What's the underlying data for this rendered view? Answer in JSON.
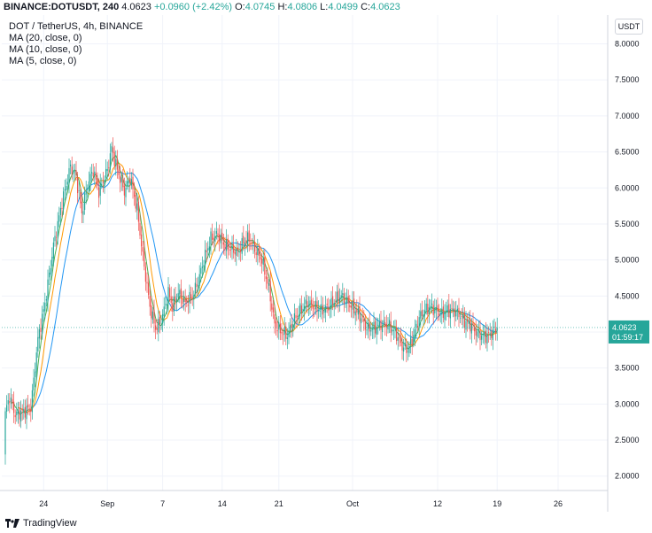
{
  "header": {
    "symbol": "BINANCE:DOTUSDT, 240",
    "last": "4.0623",
    "change": "+0.0960 (+2.42%)",
    "open_label": "O:",
    "open": "4.0745",
    "high_label": "H:",
    "high": "4.0806",
    "low_label": "L:",
    "low": "4.0499",
    "close_label": "C:",
    "close": "4.0623"
  },
  "indicators": [
    {
      "label": "DOT / TetherUS, 4h, BINANCE"
    },
    {
      "label": "MA (20, close, 0)"
    },
    {
      "label": "MA (10, close, 0)"
    },
    {
      "label": "MA (5, close, 0)"
    }
  ],
  "unit_badge": "USDT",
  "countdown": "01:59:17",
  "brand": "TradingView",
  "colors": {
    "up": "#26a69a",
    "down": "#ef5350",
    "ma20": "#2196f3",
    "ma10": "#ff9800",
    "ma5": "#4caf50",
    "grid": "#f0f3fa",
    "price_label_bg": "#26a69a"
  },
  "chart_data": {
    "type": "candlestick",
    "y_range": [
      1.8,
      8.4
    ],
    "y_ticks": [
      "2.0000",
      "2.5000",
      "3.0000",
      "3.5000",
      "4.0000",
      "4.5000",
      "5.0000",
      "5.5000",
      "6.0000",
      "6.5000",
      "7.0000",
      "7.5000",
      "8.0000"
    ],
    "x_ticks": [
      "24",
      "Sep",
      "7",
      "14",
      "21",
      "Oct",
      "12",
      "19",
      "26"
    ],
    "x_tick_index": [
      27,
      72,
      111,
      153,
      193,
      245,
      305,
      347,
      390
    ],
    "last_price": "4.0623",
    "series": [
      {
        "name": "MA (20, close, 0)",
        "period": 20
      },
      {
        "name": "MA (10, close, 0)",
        "period": 10
      },
      {
        "name": "MA (5, close, 0)",
        "period": 5
      }
    ],
    "close_anchors": [
      [
        0,
        2.9
      ],
      [
        3,
        3.1
      ],
      [
        7,
        2.85
      ],
      [
        13,
        2.9
      ],
      [
        18,
        2.95
      ],
      [
        23,
        3.9
      ],
      [
        28,
        4.4
      ],
      [
        34,
        5.2
      ],
      [
        40,
        5.8
      ],
      [
        46,
        6.3
      ],
      [
        50,
        6.15
      ],
      [
        54,
        5.65
      ],
      [
        58,
        6.05
      ],
      [
        62,
        6.25
      ],
      [
        66,
        5.95
      ],
      [
        72,
        6.25
      ],
      [
        75,
        6.55
      ],
      [
        79,
        6.25
      ],
      [
        84,
        5.95
      ],
      [
        88,
        6.15
      ],
      [
        93,
        5.7
      ],
      [
        97,
        5.05
      ],
      [
        102,
        4.35
      ],
      [
        106,
        4.05
      ],
      [
        110,
        4.15
      ],
      [
        115,
        4.55
      ],
      [
        118,
        4.35
      ],
      [
        122,
        4.55
      ],
      [
        127,
        4.4
      ],
      [
        132,
        4.5
      ],
      [
        136,
        4.7
      ],
      [
        140,
        5.0
      ],
      [
        145,
        5.3
      ],
      [
        150,
        5.35
      ],
      [
        155,
        5.2
      ],
      [
        160,
        5.15
      ],
      [
        164,
        5.1
      ],
      [
        168,
        5.25
      ],
      [
        172,
        5.3
      ],
      [
        176,
        5.15
      ],
      [
        181,
        5.0
      ],
      [
        186,
        4.6
      ],
      [
        190,
        4.1
      ],
      [
        195,
        4.0
      ],
      [
        199,
        3.95
      ],
      [
        203,
        4.15
      ],
      [
        208,
        4.3
      ],
      [
        213,
        4.4
      ],
      [
        218,
        4.35
      ],
      [
        223,
        4.3
      ],
      [
        228,
        4.35
      ],
      [
        233,
        4.45
      ],
      [
        237,
        4.5
      ],
      [
        242,
        4.4
      ],
      [
        247,
        4.3
      ],
      [
        251,
        4.2
      ],
      [
        255,
        4.05
      ],
      [
        260,
        4.05
      ],
      [
        265,
        4.1
      ],
      [
        270,
        4.1
      ],
      [
        275,
        4.0
      ],
      [
        280,
        3.8
      ],
      [
        284,
        3.75
      ],
      [
        288,
        3.95
      ],
      [
        292,
        4.2
      ],
      [
        296,
        4.3
      ],
      [
        300,
        4.35
      ],
      [
        304,
        4.3
      ],
      [
        308,
        4.25
      ],
      [
        312,
        4.3
      ],
      [
        316,
        4.3
      ],
      [
        320,
        4.25
      ],
      [
        324,
        4.15
      ],
      [
        328,
        4.1
      ],
      [
        332,
        4.0
      ],
      [
        336,
        3.95
      ],
      [
        340,
        3.95
      ],
      [
        344,
        4.0
      ],
      [
        347,
        4.0623
      ]
    ]
  }
}
